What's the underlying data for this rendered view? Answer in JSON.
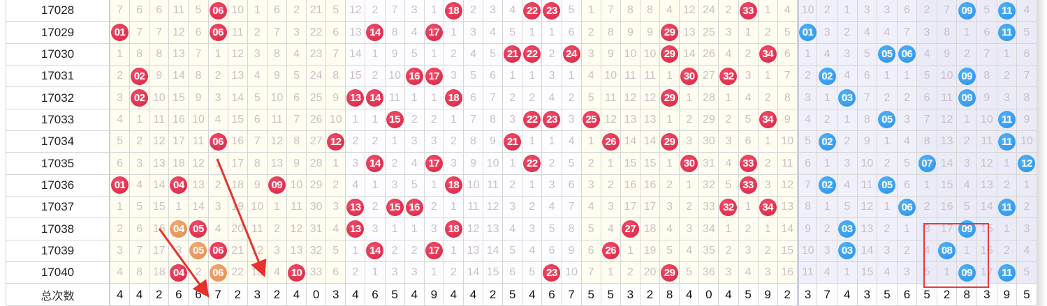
{
  "chart_data": {
    "type": "table",
    "red_count": 35,
    "blue_count": 12,
    "colors": {
      "red_ball": "#e0284e",
      "blue_ball": "#3a9ff0",
      "marker_ball": "#e8955a",
      "highlight_box": "#e53a3a"
    },
    "rows": [
      {
        "issue": "17028",
        "red": [
          "7",
          "6",
          "6",
          "11",
          "5",
          "06",
          "10",
          "1",
          "6",
          "2",
          "21",
          "5",
          "12",
          "2",
          "7",
          "3",
          "1",
          "18",
          "2",
          "3",
          "4",
          "22",
          "23",
          "5",
          "1",
          "7",
          "8",
          "8",
          "4",
          "12",
          "24",
          "2",
          "33",
          "1",
          "4"
        ],
        "red_hits": [
          6,
          18,
          22,
          23,
          33
        ],
        "blue": [
          "10",
          "2",
          "1",
          "3",
          "3",
          "6",
          "2",
          "7",
          "09",
          "5",
          "11",
          "4"
        ],
        "blue_hits": [
          9,
          11
        ]
      },
      {
        "issue": "17029",
        "red": [
          "01",
          "7",
          "7",
          "12",
          "6",
          "06",
          "11",
          "2",
          "7",
          "3",
          "22",
          "6",
          "13",
          "14",
          "8",
          "4",
          "17",
          "1",
          "3",
          "4",
          "5",
          "1",
          "1",
          "6",
          "2",
          "8",
          "9",
          "9",
          "29",
          "13",
          "25",
          "3",
          "1",
          "2",
          "5"
        ],
        "red_hits": [
          1,
          6,
          14,
          17,
          29
        ],
        "blue": [
          "01",
          "3",
          "2",
          "4",
          "4",
          "7",
          "3",
          "8",
          "1",
          "6",
          "11",
          "5"
        ],
        "blue_hits": [
          1,
          11
        ]
      },
      {
        "issue": "17030",
        "red": [
          "1",
          "8",
          "8",
          "13",
          "7",
          "1",
          "12",
          "3",
          "8",
          "4",
          "23",
          "7",
          "14",
          "1",
          "9",
          "5",
          "1",
          "2",
          "4",
          "5",
          "21",
          "22",
          "2",
          "24",
          "3",
          "9",
          "10",
          "10",
          "29",
          "14",
          "26",
          "4",
          "2",
          "34",
          "6"
        ],
        "red_hits": [
          21,
          22,
          24,
          29,
          34
        ],
        "blue": [
          "1",
          "4",
          "3",
          "5",
          "05",
          "06",
          "4",
          "9",
          "2",
          "7",
          "1",
          "6"
        ],
        "blue_hits": [
          5,
          6
        ]
      },
      {
        "issue": "17031",
        "red": [
          "2",
          "02",
          "9",
          "14",
          "8",
          "2",
          "13",
          "4",
          "9",
          "5",
          "24",
          "8",
          "15",
          "2",
          "10",
          "16",
          "17",
          "3",
          "5",
          "6",
          "1",
          "1",
          "3",
          "1",
          "4",
          "10",
          "11",
          "11",
          "1",
          "30",
          "27",
          "32",
          "3",
          "1",
          "7"
        ],
        "red_hits": [
          2,
          16,
          17,
          30,
          32
        ],
        "blue": [
          "2",
          "02",
          "4",
          "6",
          "1",
          "1",
          "5",
          "10",
          "09",
          "8",
          "2",
          "7"
        ],
        "blue_hits": [
          2,
          9
        ]
      },
      {
        "issue": "17032",
        "red": [
          "3",
          "02",
          "10",
          "15",
          "9",
          "3",
          "14",
          "5",
          "10",
          "6",
          "25",
          "9",
          "13",
          "14",
          "11",
          "1",
          "1",
          "18",
          "6",
          "7",
          "2",
          "2",
          "4",
          "2",
          "5",
          "11",
          "12",
          "12",
          "29",
          "1",
          "28",
          "1",
          "4",
          "2",
          "8"
        ],
        "red_hits": [
          2,
          13,
          14,
          18,
          29
        ],
        "blue": [
          "3",
          "1",
          "03",
          "7",
          "2",
          "2",
          "6",
          "11",
          "09",
          "9",
          "3",
          "8"
        ],
        "blue_hits": [
          3,
          9
        ]
      },
      {
        "issue": "17033",
        "red": [
          "4",
          "1",
          "11",
          "16",
          "10",
          "4",
          "15",
          "6",
          "11",
          "7",
          "26",
          "10",
          "1",
          "1",
          "15",
          "2",
          "2",
          "1",
          "7",
          "8",
          "3",
          "22",
          "23",
          "3",
          "25",
          "12",
          "13",
          "13",
          "1",
          "2",
          "29",
          "2",
          "5",
          "34",
          "9"
        ],
        "red_hits": [
          15,
          22,
          23,
          25,
          34
        ],
        "blue": [
          "4",
          "2",
          "1",
          "8",
          "05",
          "3",
          "7",
          "12",
          "1",
          "10",
          "11",
          "9"
        ],
        "blue_hits": [
          5,
          11
        ]
      },
      {
        "issue": "17034",
        "red": [
          "5",
          "2",
          "12",
          "17",
          "11",
          "06",
          "16",
          "7",
          "12",
          "8",
          "27",
          "12",
          "2",
          "2",
          "1",
          "3",
          "3",
          "2",
          "8",
          "9",
          "21",
          "1",
          "1",
          "4",
          "1",
          "26",
          "14",
          "14",
          "29",
          "3",
          "30",
          "3",
          "6",
          "1",
          "10"
        ],
        "red_hits": [
          6,
          12,
          21,
          26,
          29
        ],
        "blue": [
          "5",
          "02",
          "2",
          "9",
          "1",
          "4",
          "8",
          "13",
          "2",
          "11",
          "11",
          "10"
        ],
        "blue_hits": [
          2,
          11
        ]
      },
      {
        "issue": "17035",
        "red": [
          "6",
          "3",
          "13",
          "18",
          "12",
          "1",
          "17",
          "8",
          "13",
          "9",
          "28",
          "1",
          "3",
          "14",
          "2",
          "4",
          "17",
          "3",
          "9",
          "10",
          "1",
          "22",
          "2",
          "5",
          "2",
          "1",
          "15",
          "15",
          "1",
          "30",
          "31",
          "4",
          "33",
          "2",
          "11"
        ],
        "red_hits": [
          14,
          17,
          22,
          30,
          33
        ],
        "blue": [
          "6",
          "1",
          "3",
          "10",
          "2",
          "5",
          "07",
          "14",
          "3",
          "12",
          "1",
          "12"
        ],
        "blue_hits": [
          7,
          12
        ]
      },
      {
        "issue": "17036",
        "red": [
          "01",
          "4",
          "14",
          "04",
          "13",
          "2",
          "18",
          "9",
          "09",
          "10",
          "29",
          "2",
          "4",
          "1",
          "3",
          "5",
          "1",
          "18",
          "10",
          "11",
          "2",
          "1",
          "3",
          "6",
          "3",
          "2",
          "16",
          "16",
          "2",
          "1",
          "32",
          "5",
          "33",
          "3",
          "12"
        ],
        "red_hits": [
          1,
          4,
          9,
          18,
          33
        ],
        "blue": [
          "7",
          "02",
          "4",
          "11",
          "05",
          "6",
          "1",
          "15",
          "4",
          "13",
          "2",
          "1"
        ],
        "blue_hits": [
          2,
          5
        ]
      },
      {
        "issue": "17037",
        "red": [
          "1",
          "5",
          "15",
          "1",
          "14",
          "3",
          "19",
          "10",
          "1",
          "11",
          "30",
          "3",
          "13",
          "2",
          "15",
          "16",
          "2",
          "1",
          "11",
          "12",
          "3",
          "2",
          "4",
          "7",
          "4",
          "3",
          "17",
          "17",
          "3",
          "2",
          "33",
          "32",
          "1",
          "34",
          "13"
        ],
        "red_hits": [
          13,
          15,
          16,
          32,
          34
        ],
        "blue": [
          "8",
          "1",
          "5",
          "12",
          "1",
          "06",
          "2",
          "16",
          "5",
          "14",
          "11",
          "2"
        ],
        "blue_hits": [
          6,
          11
        ]
      },
      {
        "issue": "17038",
        "red": [
          "2",
          "6",
          "16",
          "04",
          "05",
          "4",
          "20",
          "11",
          "2",
          "12",
          "31",
          "4",
          "13",
          "3",
          "1",
          "1",
          "3",
          "18",
          "12",
          "13",
          "4",
          "3",
          "5",
          "8",
          "5",
          "4",
          "27",
          "18",
          "4",
          "3",
          "34",
          "1",
          "2",
          "1",
          "14"
        ],
        "red_hits": [
          5,
          13,
          18,
          27
        ],
        "red_marks": [
          4
        ],
        "blue": [
          "9",
          "2",
          "03",
          "13",
          "2",
          "1",
          "3",
          "17",
          "09",
          "15",
          "1",
          "3"
        ],
        "blue_hits": [
          3,
          9
        ]
      },
      {
        "issue": "17039",
        "red": [
          "3",
          "7",
          "17",
          "3",
          "05",
          "06",
          "21",
          "12",
          "3",
          "13",
          "32",
          "5",
          "1",
          "14",
          "2",
          "2",
          "17",
          "1",
          "13",
          "14",
          "5",
          "4",
          "6",
          "9",
          "6",
          "26",
          "1",
          "19",
          "5",
          "4",
          "35",
          "2",
          "3",
          "2",
          "15"
        ],
        "red_hits": [
          6,
          14,
          17,
          26
        ],
        "red_marks": [
          5
        ],
        "blue": [
          "10",
          "3",
          "03",
          "14",
          "3",
          "2",
          "4",
          "08",
          "1",
          "16",
          "2",
          "4"
        ],
        "blue_hits": [
          3,
          8
        ]
      },
      {
        "issue": "17040",
        "red": [
          "4",
          "8",
          "18",
          "04",
          "2",
          "06",
          "22",
          "13",
          "4",
          "10",
          "33",
          "6",
          "2",
          "1",
          "3",
          "3",
          "1",
          "2",
          "14",
          "15",
          "6",
          "5",
          "23",
          "10",
          "7",
          "1",
          "2",
          "20",
          "29",
          "5",
          "36",
          "3",
          "4",
          "3",
          "16"
        ],
        "red_hits": [
          4,
          10,
          23,
          29
        ],
        "red_marks": [
          6
        ],
        "blue": [
          "11",
          "4",
          "1",
          "15",
          "4",
          "3",
          "5",
          "1",
          "09",
          "17",
          "11",
          "5"
        ],
        "blue_hits": [
          9,
          11
        ]
      }
    ],
    "totals": {
      "label": "总次数",
      "red": [
        "4",
        "4",
        "2",
        "6",
        "6",
        "7",
        "2",
        "3",
        "2",
        "4",
        "0",
        "3",
        "4",
        "6",
        "5",
        "4",
        "9",
        "4",
        "4",
        "2",
        "5",
        "4",
        "6",
        "7",
        "5",
        "5",
        "3",
        "2",
        "8",
        "4",
        "0",
        "4",
        "5",
        "9",
        "2"
      ],
      "blue": [
        "3",
        "7",
        "4",
        "3",
        "5",
        "6",
        "5",
        "2",
        "8",
        "3",
        "9",
        "5"
      ]
    }
  }
}
